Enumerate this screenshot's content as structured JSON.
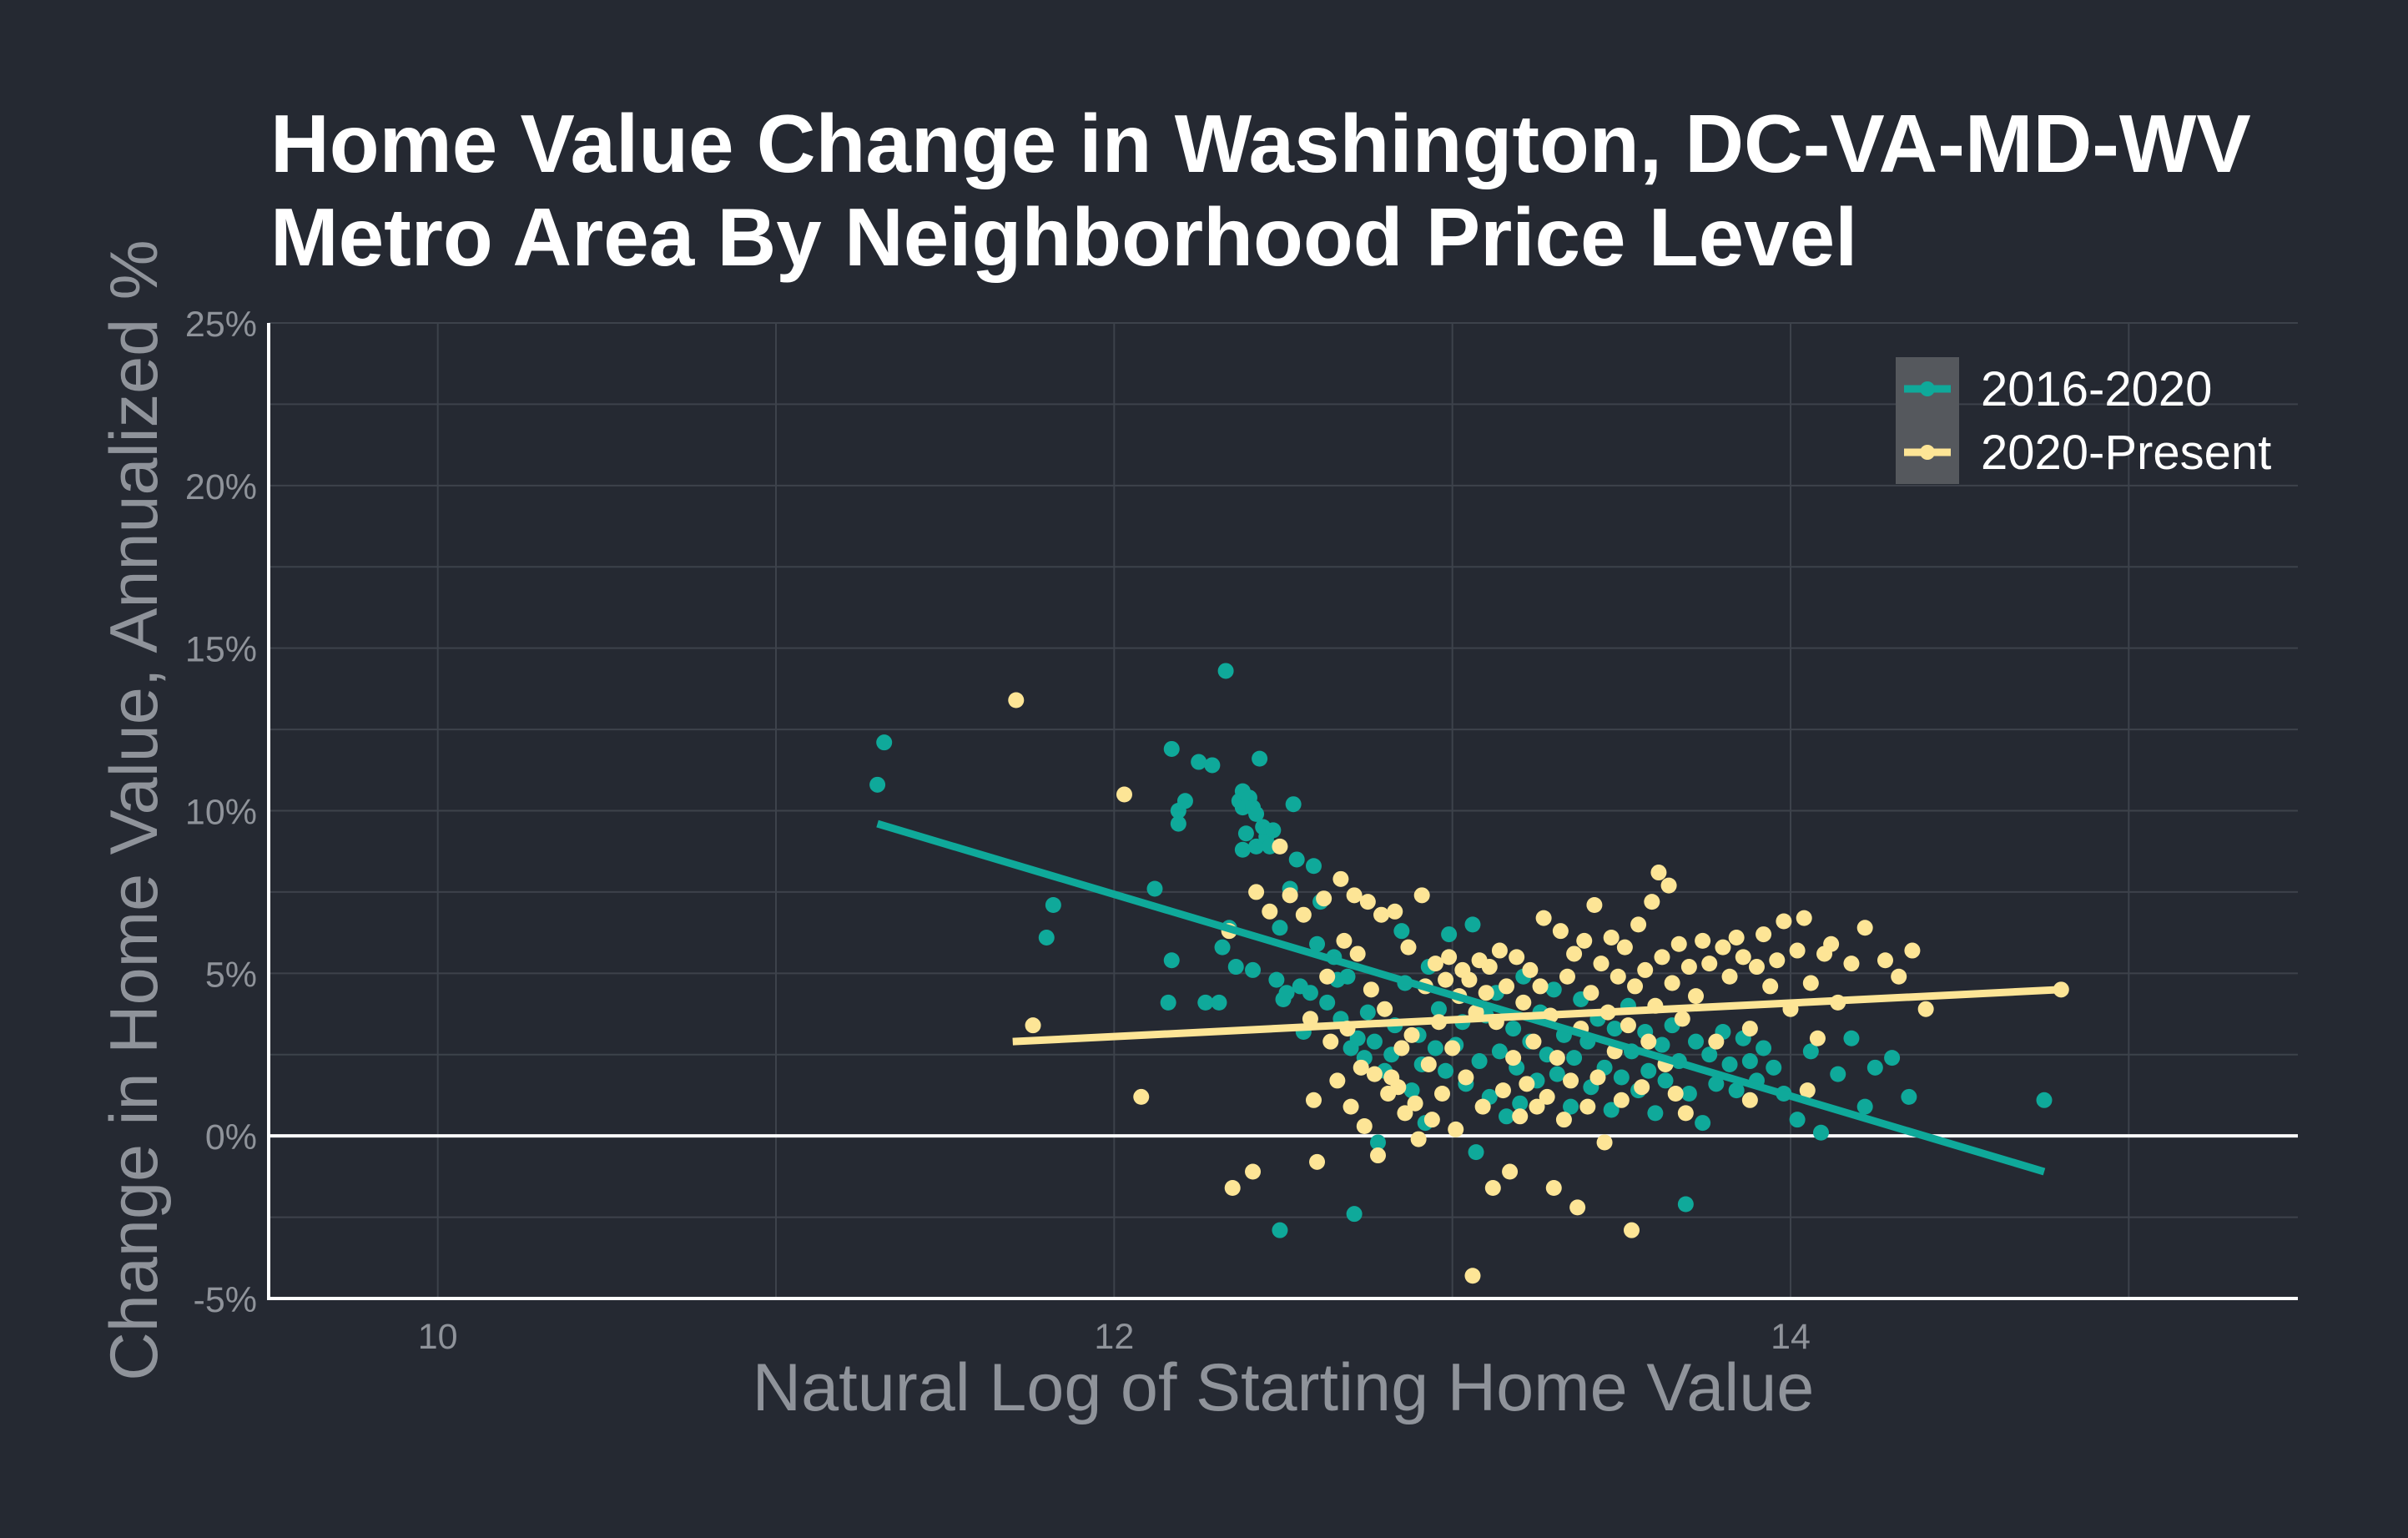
{
  "chart_data": {
    "type": "scatter",
    "title": [
      "Home Value Change in Washington, DC-VA-MD-WV",
      "Metro Area By Neighborhood Price Level"
    ],
    "xlabel": "Natural Log of Starting Home Value",
    "ylabel": "Change in Home Value, Annualized %",
    "xlim": [
      9.5,
      15.5
    ],
    "ylim": [
      -5,
      25
    ],
    "x_ticks": [
      10,
      12,
      14
    ],
    "x_tick_labels": [
      "10",
      "12",
      "14"
    ],
    "x_minor_ticks": [
      11,
      13,
      15
    ],
    "y_ticks": [
      -5,
      0,
      5,
      10,
      15,
      20,
      25
    ],
    "y_tick_labels": [
      "-5%",
      "0%",
      "5%",
      "10%",
      "15%",
      "20%",
      "25%"
    ],
    "y_minor_ticks": [
      -2.5,
      2.5,
      7.5,
      12.5,
      17.5,
      22.5
    ],
    "grid": true,
    "zero_line": true,
    "legend_position": "top-right",
    "colors": {
      "background": "#252932",
      "grid": "#3d424b",
      "zero_line": "#ffffff",
      "axis": "#ffffff",
      "ribbon": "#6d7074",
      "legend_key_bg": "#55585d"
    },
    "series": [
      {
        "name": "2016-2020",
        "color": "#0fa99a",
        "fit": {
          "x": [
            11.3,
            14.75
          ],
          "y": [
            9.6,
            -1.1
          ],
          "band": 0.75
        },
        "points": [
          [
            11.3,
            10.8
          ],
          [
            11.32,
            12.1
          ],
          [
            11.8,
            6.1
          ],
          [
            11.82,
            7.1
          ],
          [
            12.12,
            7.6
          ],
          [
            12.17,
            11.9
          ],
          [
            12.19,
            10.0
          ],
          [
            12.19,
            9.6
          ],
          [
            12.21,
            10.3
          ],
          [
            12.17,
            5.4
          ],
          [
            12.16,
            4.1
          ],
          [
            12.25,
            11.5
          ],
          [
            12.27,
            4.1
          ],
          [
            12.29,
            11.4
          ],
          [
            12.31,
            4.1
          ],
          [
            12.32,
            5.8
          ],
          [
            12.33,
            14.3
          ],
          [
            12.36,
            5.2
          ],
          [
            12.34,
            6.4
          ],
          [
            12.37,
            10.3
          ],
          [
            12.38,
            10.6
          ],
          [
            12.38,
            10.1
          ],
          [
            12.39,
            9.3
          ],
          [
            12.38,
            8.8
          ],
          [
            12.4,
            10.4
          ],
          [
            12.42,
            9.9
          ],
          [
            12.41,
            10.1
          ],
          [
            12.42,
            8.9
          ],
          [
            12.43,
            11.6
          ],
          [
            12.45,
            9.2
          ],
          [
            12.44,
            9.5
          ],
          [
            12.41,
            5.1
          ],
          [
            12.47,
            9.4
          ],
          [
            12.46,
            8.9
          ],
          [
            12.48,
            4.8
          ],
          [
            12.49,
            6.4
          ],
          [
            12.5,
            4.2
          ],
          [
            12.51,
            4.4
          ],
          [
            12.52,
            7.6
          ],
          [
            12.53,
            10.2
          ],
          [
            12.54,
            8.5
          ],
          [
            12.55,
            4.6
          ],
          [
            12.56,
            3.2
          ],
          [
            12.58,
            4.4
          ],
          [
            12.59,
            8.3
          ],
          [
            12.6,
            5.9
          ],
          [
            12.61,
            7.2
          ],
          [
            12.63,
            4.1
          ],
          [
            12.65,
            5.5
          ],
          [
            12.66,
            4.8
          ],
          [
            12.67,
            3.6
          ],
          [
            12.69,
            4.9
          ],
          [
            12.7,
            2.7
          ],
          [
            12.72,
            3.0
          ],
          [
            12.74,
            2.4
          ],
          [
            12.75,
            3.8
          ],
          [
            12.77,
            2.9
          ],
          [
            12.78,
            -0.2
          ],
          [
            12.8,
            2.0
          ],
          [
            12.82,
            2.5
          ],
          [
            12.83,
            3.4
          ],
          [
            12.85,
            6.3
          ],
          [
            12.86,
            4.7
          ],
          [
            12.88,
            1.4
          ],
          [
            12.9,
            3.1
          ],
          [
            12.91,
            2.2
          ],
          [
            12.93,
            5.2
          ],
          [
            12.95,
            2.7
          ],
          [
            12.96,
            3.9
          ],
          [
            12.98,
            2.0
          ],
          [
            12.99,
            6.2
          ],
          [
            13.01,
            2.8
          ],
          [
            13.03,
            3.5
          ],
          [
            13.04,
            1.6
          ],
          [
            13.06,
            6.5
          ],
          [
            13.08,
            2.3
          ],
          [
            13.1,
            3.7
          ],
          [
            13.11,
            1.2
          ],
          [
            13.13,
            4.4
          ],
          [
            13.14,
            2.6
          ],
          [
            13.16,
            0.6
          ],
          [
            13.18,
            3.3
          ],
          [
            13.19,
            2.1
          ],
          [
            13.21,
            4.9
          ],
          [
            13.23,
            2.9
          ],
          [
            13.25,
            1.7
          ],
          [
            13.26,
            3.8
          ],
          [
            13.28,
            2.5
          ],
          [
            13.3,
            4.5
          ],
          [
            13.31,
            1.9
          ],
          [
            13.33,
            3.1
          ],
          [
            13.35,
            0.9
          ],
          [
            13.36,
            2.4
          ],
          [
            13.38,
            4.2
          ],
          [
            13.4,
            2.9
          ],
          [
            13.41,
            1.5
          ],
          [
            13.43,
            3.6
          ],
          [
            13.45,
            2.1
          ],
          [
            13.47,
            0.8
          ],
          [
            13.48,
            3.3
          ],
          [
            13.5,
            1.8
          ],
          [
            13.52,
            4.0
          ],
          [
            13.53,
            2.6
          ],
          [
            13.55,
            1.4
          ],
          [
            13.57,
            3.2
          ],
          [
            13.58,
            2.0
          ],
          [
            13.6,
            0.7
          ],
          [
            13.62,
            2.8
          ],
          [
            13.63,
            1.7
          ],
          [
            13.65,
            3.4
          ],
          [
            13.67,
            2.3
          ],
          [
            13.69,
            -2.1
          ],
          [
            13.7,
            1.3
          ],
          [
            13.72,
            2.9
          ],
          [
            13.74,
            0.4
          ],
          [
            13.76,
            2.5
          ],
          [
            13.78,
            1.6
          ],
          [
            13.8,
            3.2
          ],
          [
            13.82,
            2.2
          ],
          [
            13.84,
            1.4
          ],
          [
            13.86,
            3.0
          ],
          [
            13.88,
            2.3
          ],
          [
            13.9,
            1.7
          ],
          [
            13.92,
            2.7
          ],
          [
            13.95,
            2.1
          ],
          [
            13.98,
            1.3
          ],
          [
            14.02,
            0.5
          ],
          [
            14.06,
            2.6
          ],
          [
            14.09,
            0.1
          ],
          [
            14.14,
            1.9
          ],
          [
            14.18,
            3.0
          ],
          [
            14.22,
            0.9
          ],
          [
            14.25,
            2.1
          ],
          [
            14.3,
            2.4
          ],
          [
            14.35,
            1.2
          ],
          [
            14.75,
            1.1
          ],
          [
            12.49,
            -2.9
          ],
          [
            12.71,
            -2.4
          ],
          [
            13.07,
            -0.5
          ],
          [
            12.92,
            0.4
          ],
          [
            13.2,
            1.0
          ]
        ]
      },
      {
        "name": "2020-Present",
        "color": "#fde596",
        "fit": {
          "x": [
            11.7,
            14.8
          ],
          "y": [
            2.9,
            4.5
          ],
          "band": 0.85
        },
        "points": [
          [
            11.71,
            13.4
          ],
          [
            11.76,
            3.4
          ],
          [
            12.03,
            10.5
          ],
          [
            12.08,
            1.2
          ],
          [
            12.34,
            6.3
          ],
          [
            12.35,
            -1.6
          ],
          [
            12.41,
            -1.1
          ],
          [
            12.42,
            7.5
          ],
          [
            12.46,
            6.9
          ],
          [
            12.49,
            8.9
          ],
          [
            12.52,
            7.4
          ],
          [
            12.56,
            6.8
          ],
          [
            12.58,
            3.6
          ],
          [
            12.59,
            1.1
          ],
          [
            12.6,
            -0.8
          ],
          [
            12.62,
            7.3
          ],
          [
            12.63,
            4.9
          ],
          [
            12.64,
            2.9
          ],
          [
            12.66,
            1.7
          ],
          [
            12.67,
            7.9
          ],
          [
            12.68,
            6.0
          ],
          [
            12.69,
            3.3
          ],
          [
            12.7,
            0.9
          ],
          [
            12.71,
            7.4
          ],
          [
            12.72,
            5.6
          ],
          [
            12.73,
            2.1
          ],
          [
            12.74,
            0.3
          ],
          [
            12.75,
            7.2
          ],
          [
            12.76,
            4.5
          ],
          [
            12.77,
            1.9
          ],
          [
            12.78,
            -0.6
          ],
          [
            12.79,
            6.8
          ],
          [
            12.8,
            3.9
          ],
          [
            12.81,
            1.3
          ],
          [
            12.82,
            1.8
          ],
          [
            12.83,
            6.9
          ],
          [
            12.84,
            1.5
          ],
          [
            12.85,
            2.7
          ],
          [
            12.86,
            0.7
          ],
          [
            12.87,
            5.8
          ],
          [
            12.88,
            3.1
          ],
          [
            12.89,
            1.0
          ],
          [
            12.9,
            -0.1
          ],
          [
            12.91,
            7.4
          ],
          [
            12.92,
            4.6
          ],
          [
            12.93,
            2.2
          ],
          [
            12.94,
            0.5
          ],
          [
            12.95,
            5.3
          ],
          [
            12.96,
            3.5
          ],
          [
            12.97,
            1.3
          ],
          [
            12.98,
            4.8
          ],
          [
            12.99,
            5.5
          ],
          [
            13.0,
            2.7
          ],
          [
            13.01,
            0.2
          ],
          [
            13.02,
            4.3
          ],
          [
            13.03,
            5.1
          ],
          [
            13.04,
            1.8
          ],
          [
            13.05,
            4.8
          ],
          [
            13.06,
            -4.3
          ],
          [
            13.07,
            3.8
          ],
          [
            13.08,
            5.4
          ],
          [
            13.09,
            0.9
          ],
          [
            13.1,
            4.4
          ],
          [
            13.11,
            5.2
          ],
          [
            13.12,
            -1.6
          ],
          [
            13.13,
            3.5
          ],
          [
            13.14,
            5.7
          ],
          [
            13.15,
            1.4
          ],
          [
            13.16,
            4.6
          ],
          [
            13.17,
            -1.1
          ],
          [
            13.18,
            2.4
          ],
          [
            13.19,
            5.5
          ],
          [
            13.2,
            0.6
          ],
          [
            13.21,
            4.1
          ],
          [
            13.22,
            1.6
          ],
          [
            13.23,
            5.1
          ],
          [
            13.24,
            2.9
          ],
          [
            13.25,
            0.9
          ],
          [
            13.26,
            4.6
          ],
          [
            13.27,
            6.7
          ],
          [
            13.28,
            1.2
          ],
          [
            13.29,
            3.7
          ],
          [
            13.3,
            -1.6
          ],
          [
            13.31,
            2.4
          ],
          [
            13.32,
            6.3
          ],
          [
            13.33,
            0.5
          ],
          [
            13.34,
            4.9
          ],
          [
            13.35,
            1.7
          ],
          [
            13.36,
            5.6
          ],
          [
            13.37,
            -2.2
          ],
          [
            13.38,
            3.3
          ],
          [
            13.39,
            6.0
          ],
          [
            13.4,
            0.9
          ],
          [
            13.41,
            4.4
          ],
          [
            13.42,
            7.1
          ],
          [
            13.43,
            1.8
          ],
          [
            13.44,
            5.3
          ],
          [
            13.45,
            -0.2
          ],
          [
            13.46,
            3.8
          ],
          [
            13.47,
            6.1
          ],
          [
            13.48,
            2.6
          ],
          [
            13.49,
            4.9
          ],
          [
            13.5,
            1.1
          ],
          [
            13.51,
            5.8
          ],
          [
            13.52,
            3.4
          ],
          [
            13.53,
            -2.9
          ],
          [
            13.54,
            4.6
          ],
          [
            13.55,
            6.5
          ],
          [
            13.56,
            1.5
          ],
          [
            13.57,
            5.1
          ],
          [
            13.58,
            2.9
          ],
          [
            13.59,
            7.2
          ],
          [
            13.6,
            4.0
          ],
          [
            13.61,
            8.1
          ],
          [
            13.62,
            5.5
          ],
          [
            13.63,
            2.2
          ],
          [
            13.64,
            7.7
          ],
          [
            13.65,
            4.7
          ],
          [
            13.66,
            1.3
          ],
          [
            13.67,
            5.9
          ],
          [
            13.68,
            3.6
          ],
          [
            13.69,
            0.7
          ],
          [
            13.7,
            5.2
          ],
          [
            13.72,
            4.3
          ],
          [
            13.74,
            6.0
          ],
          [
            13.76,
            5.3
          ],
          [
            13.78,
            2.9
          ],
          [
            13.8,
            5.8
          ],
          [
            13.82,
            4.9
          ],
          [
            13.84,
            6.1
          ],
          [
            13.86,
            5.5
          ],
          [
            13.88,
            3.3
          ],
          [
            13.9,
            5.2
          ],
          [
            13.92,
            6.2
          ],
          [
            13.94,
            4.6
          ],
          [
            13.96,
            5.4
          ],
          [
            13.98,
            6.6
          ],
          [
            14.0,
            3.9
          ],
          [
            14.02,
            5.7
          ],
          [
            14.04,
            6.7
          ],
          [
            14.06,
            4.7
          ],
          [
            14.08,
            3.0
          ],
          [
            14.1,
            5.6
          ],
          [
            14.12,
            5.9
          ],
          [
            14.14,
            4.1
          ],
          [
            14.18,
            5.3
          ],
          [
            14.22,
            6.4
          ],
          [
            14.28,
            5.4
          ],
          [
            14.32,
            4.9
          ],
          [
            14.36,
            5.7
          ],
          [
            14.4,
            3.9
          ],
          [
            14.8,
            4.5
          ],
          [
            13.88,
            1.1
          ],
          [
            14.05,
            1.4
          ]
        ]
      }
    ]
  }
}
